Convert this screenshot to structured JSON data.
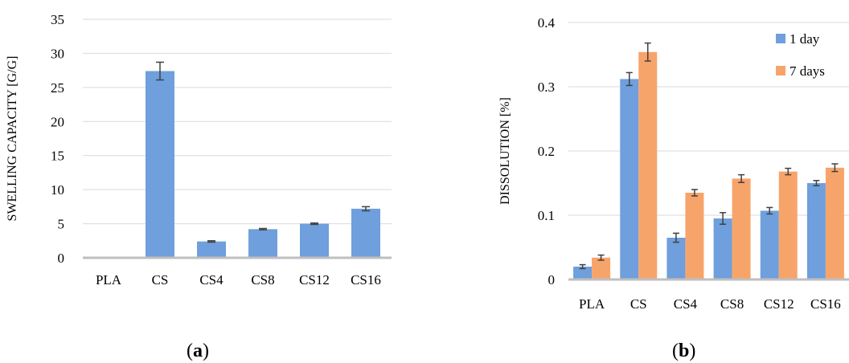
{
  "panels": {
    "a": {
      "open": "(",
      "letter": "a",
      "close": ")"
    },
    "b": {
      "open": "(",
      "letter": "b",
      "close": ")"
    }
  },
  "colors": {
    "blue": "#6f9fdc",
    "orange": "#f7a46b",
    "grid": "#d9d9d9",
    "axis": "#bfbfbf",
    "error": "#404040"
  },
  "chart_data": [
    {
      "type": "bar",
      "title": "",
      "xlabel": "",
      "ylabel": "SWELLING CAPACITY [G/G]",
      "categories": [
        "PLA",
        "CS",
        "CS4",
        "CS8",
        "CS12",
        "CS16"
      ],
      "series": [
        {
          "name": "",
          "color": "#6f9fdc",
          "values": [
            0,
            27.4,
            2.4,
            4.2,
            5.0,
            7.2
          ],
          "errors": [
            0,
            1.3,
            0.1,
            0.1,
            0.1,
            0.3
          ]
        }
      ],
      "ylim": [
        0,
        35
      ],
      "yticks": [
        0,
        5,
        10,
        15,
        20,
        25,
        30,
        35
      ],
      "grid": true,
      "legend": "none"
    },
    {
      "type": "bar",
      "title": "",
      "xlabel": "",
      "ylabel": "DISSOLUTION [%]",
      "categories": [
        "PLA",
        "CS",
        "CS4",
        "CS8",
        "CS12",
        "CS16"
      ],
      "series": [
        {
          "name": "1 day",
          "color": "#6f9fdc",
          "values": [
            0.02,
            0.312,
            0.065,
            0.095,
            0.107,
            0.15
          ],
          "errors": [
            0.003,
            0.01,
            0.007,
            0.009,
            0.005,
            0.004
          ]
        },
        {
          "name": "7 days",
          "color": "#f7a46b",
          "values": [
            0.034,
            0.354,
            0.135,
            0.157,
            0.168,
            0.174
          ],
          "errors": [
            0.004,
            0.014,
            0.005,
            0.006,
            0.005,
            0.006
          ]
        }
      ],
      "ylim": [
        0,
        0.4
      ],
      "yticks": [
        0,
        0.1,
        0.2,
        0.3,
        0.4
      ],
      "yticklabels": [
        "0",
        "0.1",
        "0.2",
        "0.3",
        "0.4"
      ],
      "grid": true,
      "legend": "top-right"
    }
  ]
}
